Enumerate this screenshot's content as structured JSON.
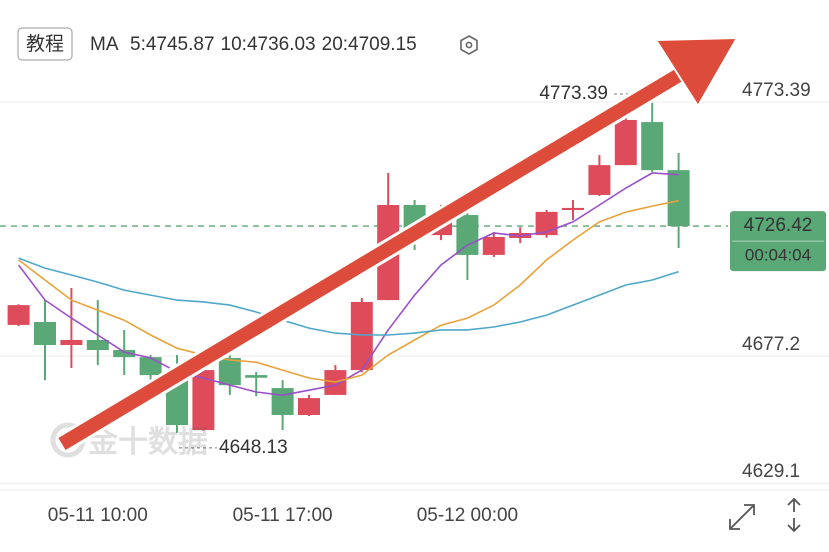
{
  "chart_data": {
    "type": "candlestick",
    "tutorial_button": "教程",
    "indicator": "MA",
    "watermark": "金十数据",
    "up_color": "#de4c5b",
    "down_color": "#5aa876",
    "categories": [
      null,
      null,
      null,
      "05-11 10:00",
      null,
      null,
      null,
      null,
      null,
      null,
      "05-11 17:00",
      null,
      null,
      null,
      null,
      null,
      null,
      "05-12 00:00",
      null,
      null,
      null,
      null,
      null,
      null,
      null,
      null
    ],
    "open": [
      4689.0,
      4690.1,
      4681.4,
      4683.3,
      4679.5,
      4676.8,
      4668.9,
      4649.2,
      4676.5,
      4670.0,
      4665.1,
      4654.9,
      4662.5,
      4671.9,
      4698.4,
      4734.4,
      4723.0,
      4730.6,
      4715.5,
      4721.9,
      4723.0,
      4732.5,
      4738.2,
      4749.5,
      4765.8,
      4747.6
    ],
    "high": [
      4696.8,
      4698.4,
      4703.0,
      4698.4,
      4687.1,
      4677.6,
      4677.6,
      4675.7,
      4677.6,
      4671.2,
      4668.1,
      4662.5,
      4673.8,
      4699.2,
      4746.5,
      4736.3,
      4734.4,
      4731.4,
      4724.2,
      4726.0,
      4732.5,
      4736.3,
      4753.3,
      4768.5,
      4773.39,
      4754.1
    ],
    "low": [
      4688.6,
      4668.1,
      4672.7,
      4673.8,
      4670.0,
      4666.2,
      4648.13,
      4649.0,
      4662.5,
      4662.0,
      4649.2,
      4654.5,
      4662.5,
      4671.1,
      4698.4,
      4717.4,
      4721.1,
      4706.0,
      4714.7,
      4720.0,
      4722.0,
      4728.7,
      4737.8,
      4749.5,
      4746.9,
      4718.1
    ],
    "close": [
      4696.5,
      4681.4,
      4683.3,
      4679.5,
      4676.8,
      4670.0,
      4651.1,
      4671.9,
      4666.2,
      4669.0,
      4654.9,
      4661.3,
      4671.9,
      4697.7,
      4734.4,
      4724.9,
      4730.6,
      4715.5,
      4722.3,
      4723.8,
      4731.8,
      4733.3,
      4749.5,
      4766.6,
      4747.6,
      4726.42
    ],
    "series": [
      {
        "name": "5:4745.87",
        "color": "#9b4fc9",
        "values": [
          4711.7,
          4698.4,
          4691.6,
          4685.2,
          4678.7,
          4676.5,
          4671.2,
          4668.9,
          4666.2,
          4663.6,
          4662.4,
          4664.3,
          4666.2,
          4671.9,
          4687.1,
          4700.3,
          4711.7,
          4719.2,
          4723.8,
          4722.7,
          4724.2,
          4728.0,
          4734.4,
          4740.8,
          4746.5,
          4745.87
        ]
      },
      {
        "name": "10:4736.03",
        "color": "#e9a23b",
        "values": [
          4713.6,
          4706.0,
          4698.4,
          4694.6,
          4690.8,
          4685.2,
          4680.2,
          4677.6,
          4675.7,
          4674.9,
          4671.9,
          4668.9,
          4667.4,
          4670.0,
          4677.6,
          4683.3,
          4688.9,
          4691.6,
          4696.5,
          4704.1,
          4713.6,
          4721.1,
          4728.0,
          4731.7,
          4734.0,
          4736.03
        ]
      },
      {
        "name": "20:4709.15",
        "color": "#4fa8c9",
        "values": [
          4714.3,
          4710.5,
          4707.9,
          4705.2,
          4702.2,
          4700.3,
          4698.4,
          4697.7,
          4696.5,
          4693.9,
          4690.8,
          4687.8,
          4685.9,
          4685.2,
          4685.2,
          4685.9,
          4687.1,
          4687.1,
          4688.2,
          4690.1,
          4692.7,
          4696.5,
          4700.3,
          4704.1,
          4706.0,
          4709.15
        ]
      }
    ],
    "high_label": 4773.39,
    "low_label": 4648.13,
    "current_price": 4726.42,
    "countdown": "00:04:04",
    "ylim": [
      4626.5,
      4789.3
    ],
    "yticks": [
      4629.1,
      4677.2,
      4773.39
    ],
    "grid": true
  }
}
